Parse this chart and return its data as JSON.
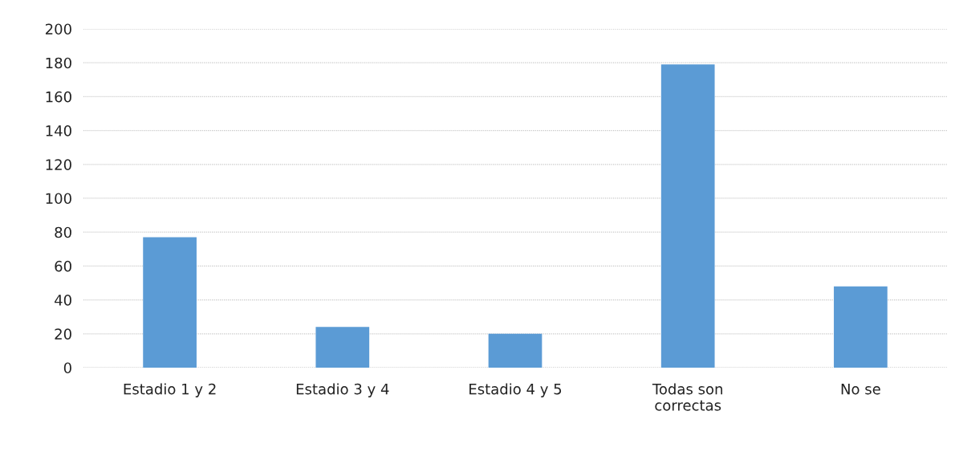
{
  "chart_data": {
    "type": "bar",
    "categories": [
      "Estadio 1 y 2",
      "Estadio 3 y 4",
      "Estadio 4 y 5",
      "Todas son\ncorrectas",
      "No se"
    ],
    "values": [
      77,
      24,
      20,
      179,
      48
    ],
    "color": "#5b9bd5",
    "ylim": [
      0,
      200
    ],
    "yticks": [
      0,
      20,
      40,
      60,
      80,
      100,
      120,
      140,
      160,
      180,
      200
    ],
    "grid": "y"
  }
}
